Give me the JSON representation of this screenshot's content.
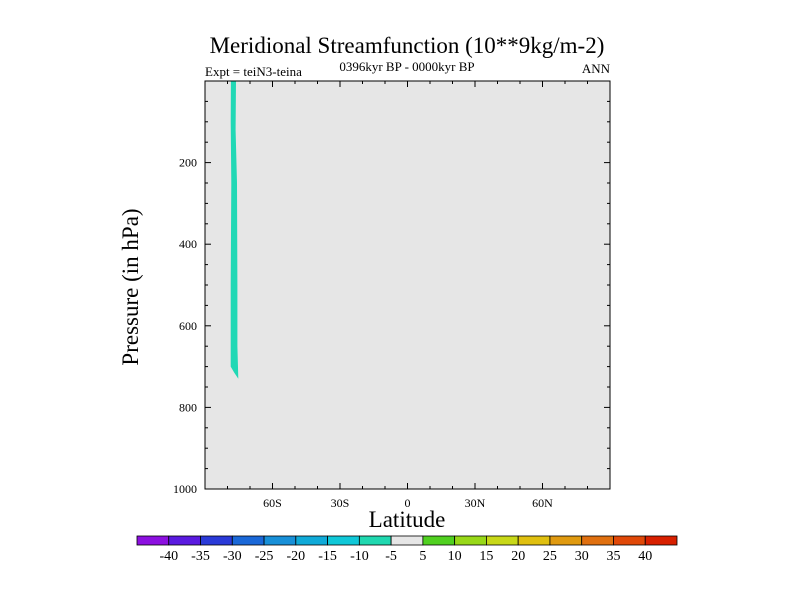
{
  "chart_data": {
    "type": "contour",
    "title": "Meridional Streamfunction (10**9kg/m-2)",
    "left_label": "Expt = teiN3-teina",
    "center_label": "0396kyr BP - 0000kyr BP",
    "right_label": "ANN",
    "xlabel": "Latitude",
    "ylabel": "Pressure (in hPa)",
    "xlim": [
      -90,
      90
    ],
    "ylim": [
      0,
      1000
    ],
    "y_inverted": true,
    "x_ticks": [
      {
        "value": -60,
        "label": "60S"
      },
      {
        "value": -30,
        "label": "30S"
      },
      {
        "value": 0,
        "label": "0"
      },
      {
        "value": 30,
        "label": "30N"
      },
      {
        "value": 60,
        "label": "60N"
      }
    ],
    "y_ticks": [
      {
        "value": 200,
        "label": "200"
      },
      {
        "value": 400,
        "label": "400"
      },
      {
        "value": 600,
        "label": "600"
      },
      {
        "value": 800,
        "label": "800"
      },
      {
        "value": 1000,
        "label": "1000"
      }
    ],
    "background_level_color": "#e6e6e6",
    "filled_regions": [
      {
        "level_range": [
          -10,
          -5
        ],
        "color": "#21d8b5",
        "polygon": [
          [
            -78.5,
            0
          ],
          [
            -76.2,
            0
          ],
          [
            -76.4,
            120
          ],
          [
            -75.8,
            250
          ],
          [
            -75.6,
            500
          ],
          [
            -75.6,
            650
          ],
          [
            -75.2,
            730
          ],
          [
            -77.0,
            715
          ],
          [
            -78.6,
            700
          ],
          [
            -78.6,
            500
          ],
          [
            -78.3,
            250
          ],
          [
            -78.6,
            100
          ]
        ]
      }
    ],
    "colorbar": {
      "labels": [
        "-40",
        "-35",
        "-30",
        "-25",
        "-20",
        "-15",
        "-10",
        "-5",
        "5",
        "10",
        "15",
        "20",
        "25",
        "30",
        "35",
        "40"
      ],
      "colors": [
        "#8c10e0",
        "#5a1ae0",
        "#2a3ad8",
        "#1a68d8",
        "#1890d8",
        "#10aad8",
        "#10c8d8",
        "#20d8b0",
        "#e6e6e6",
        "#50d020",
        "#98d818",
        "#c8d818",
        "#e0c010",
        "#e09a10",
        "#e07010",
        "#e04808",
        "#d82000"
      ]
    }
  }
}
